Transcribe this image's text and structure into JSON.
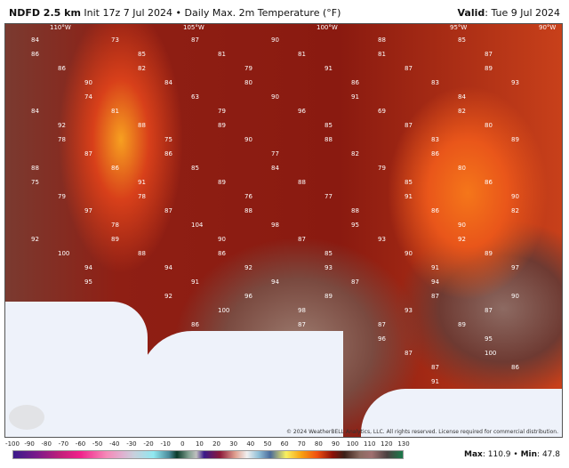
{
  "header": {
    "model": "NDFD 2.5 km",
    "init": "Init 17z 7 Jul 2024",
    "separator": "•",
    "product": "Daily Max. 2m Temperature (°F)",
    "valid_label": "Valid",
    "valid_date": "Tue 9 Jul 2024"
  },
  "map": {
    "longitudes": [
      "110°W",
      "105°W",
      "100°W",
      "95°W",
      "90°W"
    ],
    "temperatures": [
      "84",
      "73",
      "87",
      "90",
      "88",
      "85",
      "86",
      "85",
      "81",
      "81",
      "81",
      "87",
      "86",
      "82",
      "79",
      "91",
      "87",
      "89",
      "90",
      "84",
      "80",
      "86",
      "83",
      "93",
      "74",
      "63",
      "90",
      "91",
      "84",
      "84",
      "81",
      "79",
      "96",
      "69",
      "82",
      "92",
      "88",
      "89",
      "85",
      "87",
      "80",
      "78",
      "75",
      "90",
      "88",
      "83",
      "89",
      "87",
      "86",
      "77",
      "82",
      "86",
      "88",
      "86",
      "85",
      "84",
      "79",
      "80",
      "75",
      "91",
      "89",
      "88",
      "85",
      "86",
      "79",
      "78",
      "76",
      "77",
      "91",
      "90",
      "97",
      "87",
      "88",
      "88",
      "86",
      "82",
      "78",
      "104",
      "98",
      "95",
      "90",
      "92",
      "89",
      "90",
      "87",
      "93",
      "92",
      "100",
      "88",
      "86",
      "85",
      "90",
      "89",
      "94",
      "94",
      "92",
      "93",
      "91",
      "97",
      "95",
      "91",
      "94",
      "87",
      "94",
      "92",
      "96",
      "89",
      "87",
      "90",
      "100",
      "98",
      "93",
      "87",
      "86",
      "87",
      "87",
      "89",
      "96",
      "95",
      "87",
      "100",
      "87",
      "86",
      "91"
    ],
    "copyright": "© 2024 WeatherBELL Analytics, LLC. All rights reserved. License required for commercial distribution.",
    "logo_text": "WeatherBELL"
  },
  "colorbar": {
    "ticks": [
      "-100",
      "-90",
      "-80",
      "-70",
      "-60",
      "-50",
      "-40",
      "-30",
      "-20",
      "-10",
      "0",
      "10",
      "20",
      "30",
      "40",
      "50",
      "60",
      "70",
      "80",
      "90",
      "100",
      "110",
      "120",
      "130"
    ],
    "unit": "°F"
  },
  "stats": {
    "max_label": "Max",
    "max": "110.9",
    "sep": "•",
    "min_label": "Min",
    "min": "47.8"
  }
}
